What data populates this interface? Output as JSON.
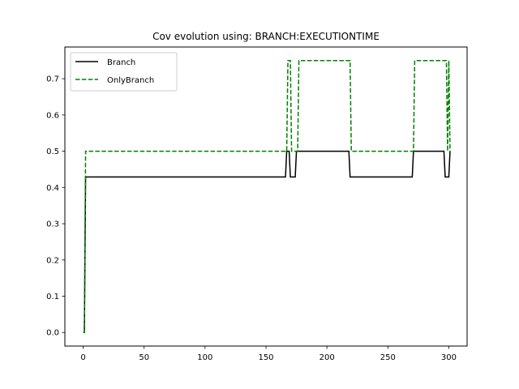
{
  "chart_data": {
    "type": "line",
    "title": "Cov evolution using: BRANCH:EXECUTIONTIME",
    "xlabel": "",
    "ylabel": "",
    "xlim": [
      -15,
      315
    ],
    "ylim": [
      -0.0375,
      0.7875
    ],
    "xticks": [
      0,
      50,
      100,
      150,
      200,
      250,
      300
    ],
    "xtick_labels": [
      "0",
      "50",
      "100",
      "150",
      "200",
      "250",
      "300"
    ],
    "yticks": [
      0.0,
      0.1,
      0.2,
      0.3,
      0.4,
      0.5,
      0.6,
      0.7
    ],
    "ytick_labels": [
      "0.0",
      "0.1",
      "0.2",
      "0.3",
      "0.4",
      "0.5",
      "0.6",
      "0.7"
    ],
    "grid": false,
    "legend_position": "top-left",
    "series": [
      {
        "name": "Branch",
        "color": "#000000",
        "style": "solid",
        "points": [
          [
            0,
            0.0
          ],
          [
            1,
            0.0
          ],
          [
            2,
            0.429
          ],
          [
            166,
            0.429
          ],
          [
            167,
            0.5
          ],
          [
            169,
            0.5
          ],
          [
            170,
            0.429
          ],
          [
            174,
            0.429
          ],
          [
            175,
            0.5
          ],
          [
            218,
            0.5
          ],
          [
            219,
            0.429
          ],
          [
            270,
            0.429
          ],
          [
            271,
            0.5
          ],
          [
            296,
            0.5
          ],
          [
            297,
            0.429
          ],
          [
            300,
            0.429
          ],
          [
            301,
            0.5
          ]
        ]
      },
      {
        "name": "OnlyBranch",
        "color": "#008000",
        "style": "dashed",
        "points": [
          [
            0,
            0.0
          ],
          [
            1,
            0.0
          ],
          [
            2,
            0.5
          ],
          [
            167,
            0.5
          ],
          [
            168,
            0.75
          ],
          [
            170,
            0.75
          ],
          [
            171,
            0.5
          ],
          [
            176,
            0.5
          ],
          [
            177,
            0.75
          ],
          [
            219,
            0.75
          ],
          [
            220,
            0.5
          ],
          [
            271,
            0.5
          ],
          [
            272,
            0.75
          ],
          [
            298,
            0.75
          ],
          [
            299,
            0.5
          ],
          [
            300,
            0.75
          ],
          [
            301,
            0.5
          ]
        ]
      }
    ]
  }
}
